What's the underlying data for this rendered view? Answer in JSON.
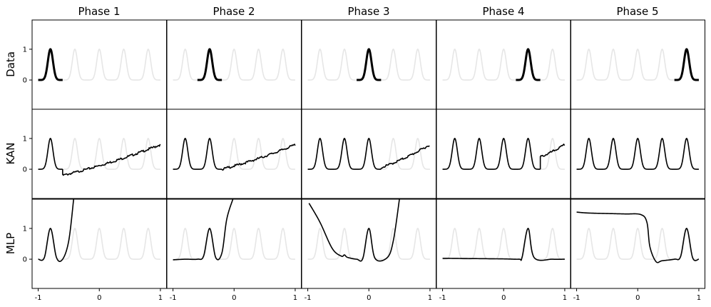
{
  "figure": {
    "columns": [
      "Phase 1",
      "Phase 2",
      "Phase 3",
      "Phase 4",
      "Phase 5"
    ],
    "rows": [
      "Data",
      "KAN",
      "MLP"
    ],
    "ytick_labels": [
      "1",
      "0"
    ],
    "xtick_labels": [
      "-1",
      "0",
      "1"
    ]
  },
  "chart_data": {
    "type": "line",
    "layout": "grid 3 rows x 5 columns, shared axes",
    "xlim": [
      -1.1,
      1.1
    ],
    "ylim": [
      -0.95,
      1.95
    ],
    "xticks": [
      -1,
      0,
      1
    ],
    "yticks": [
      0,
      1
    ],
    "peak_centers": [
      -0.8,
      -0.4,
      0.0,
      0.4,
      0.8
    ],
    "peak_height": 1,
    "background_curve": {
      "description": "all five peaks",
      "color": "#e6e6e6"
    },
    "foreground_color": "#000000",
    "rows": {
      "Data": [
        {
          "phase": "Phase 1",
          "x": [
            -1.0,
            -0.6
          ],
          "peaks": [
            -0.8
          ]
        },
        {
          "phase": "Phase 2",
          "x": [
            -0.6,
            -0.2
          ],
          "peaks": [
            -0.4
          ]
        },
        {
          "phase": "Phase 3",
          "x": [
            -0.2,
            0.2
          ],
          "peaks": [
            0.0
          ]
        },
        {
          "phase": "Phase 4",
          "x": [
            0.2,
            0.6
          ],
          "peaks": [
            0.4
          ]
        },
        {
          "phase": "Phase 5",
          "x": [
            0.6,
            1.0
          ],
          "peaks": [
            0.8
          ]
        }
      ],
      "KAN": [
        {
          "phase": "Phase 1",
          "fitted_peaks": [
            -0.8
          ],
          "tail": {
            "start_x": -0.6,
            "points": [
              [
                -0.6,
                -0.2
              ],
              [
                1.0,
                0.8
              ]
            ]
          }
        },
        {
          "phase": "Phase 2",
          "fitted_peaks": [
            -0.8,
            -0.4
          ],
          "tail": {
            "start_x": -0.2,
            "points": [
              [
                -0.2,
                0.0
              ],
              [
                1.0,
                0.8
              ]
            ]
          }
        },
        {
          "phase": "Phase 3",
          "fitted_peaks": [
            -0.8,
            -0.4,
            0.0
          ],
          "tail": {
            "start_x": 0.2,
            "points": [
              [
                0.2,
                0.05
              ],
              [
                1.0,
                0.8
              ]
            ]
          }
        },
        {
          "phase": "Phase 4",
          "fitted_peaks": [
            -0.8,
            -0.4,
            0.0,
            0.4
          ],
          "tail": {
            "start_x": 0.6,
            "points": [
              [
                0.6,
                0.4
              ],
              [
                1.0,
                0.8
              ]
            ]
          }
        },
        {
          "phase": "Phase 5",
          "fitted_peaks": [
            -0.8,
            -0.4,
            0.0,
            0.4,
            0.8
          ],
          "tail": null
        }
      ],
      "MLP": [
        {
          "phase": "Phase 1",
          "points": [
            [
              -1.0,
              0.0
            ],
            [
              -0.9,
              0.05
            ],
            [
              -0.8,
              1.0
            ],
            [
              -0.7,
              0.05
            ],
            [
              -0.6,
              0.0
            ],
            [
              -0.5,
              0.6
            ],
            [
              -0.42,
              1.95
            ]
          ]
        },
        {
          "phase": "Phase 2",
          "points": [
            [
              -1.0,
              -0.02
            ],
            [
              -0.8,
              0.0
            ],
            [
              -0.6,
              0.0
            ],
            [
              -0.5,
              0.1
            ],
            [
              -0.4,
              1.0
            ],
            [
              -0.3,
              0.05
            ],
            [
              -0.2,
              0.2
            ],
            [
              -0.12,
              1.3
            ],
            [
              -0.02,
              1.95
            ]
          ]
        },
        {
          "phase": "Phase 3",
          "points": [
            [
              -0.98,
              1.82
            ],
            [
              -0.8,
              1.2
            ],
            [
              -0.6,
              0.35
            ],
            [
              -0.45,
              0.1
            ],
            [
              -0.4,
              0.14
            ],
            [
              -0.35,
              0.06
            ],
            [
              -0.2,
              0.0
            ],
            [
              -0.1,
              0.02
            ],
            [
              0.0,
              1.0
            ],
            [
              0.1,
              0.03
            ],
            [
              0.3,
              0.05
            ],
            [
              0.4,
              0.6
            ],
            [
              0.5,
              1.95
            ]
          ]
        },
        {
          "phase": "Phase 4",
          "points": [
            [
              -1.0,
              0.03
            ],
            [
              -0.5,
              0.02
            ],
            [
              0.0,
              0.01
            ],
            [
              0.25,
              0.0
            ],
            [
              0.3,
              0.05
            ],
            [
              0.4,
              1.0
            ],
            [
              0.5,
              0.05
            ],
            [
              0.8,
              0.0
            ],
            [
              1.0,
              0.0
            ]
          ]
        },
        {
          "phase": "Phase 5",
          "points": [
            [
              -1.0,
              1.53
            ],
            [
              -0.8,
              1.5
            ],
            [
              -0.4,
              1.48
            ],
            [
              -0.2,
              1.47
            ],
            [
              0.05,
              1.45
            ],
            [
              0.15,
              1.2
            ],
            [
              0.2,
              0.4
            ],
            [
              0.3,
              -0.08
            ],
            [
              0.4,
              -0.05
            ],
            [
              0.6,
              0.0
            ],
            [
              0.7,
              0.08
            ],
            [
              0.8,
              1.0
            ],
            [
              0.9,
              0.04
            ],
            [
              1.0,
              0.0
            ]
          ]
        }
      ]
    }
  }
}
